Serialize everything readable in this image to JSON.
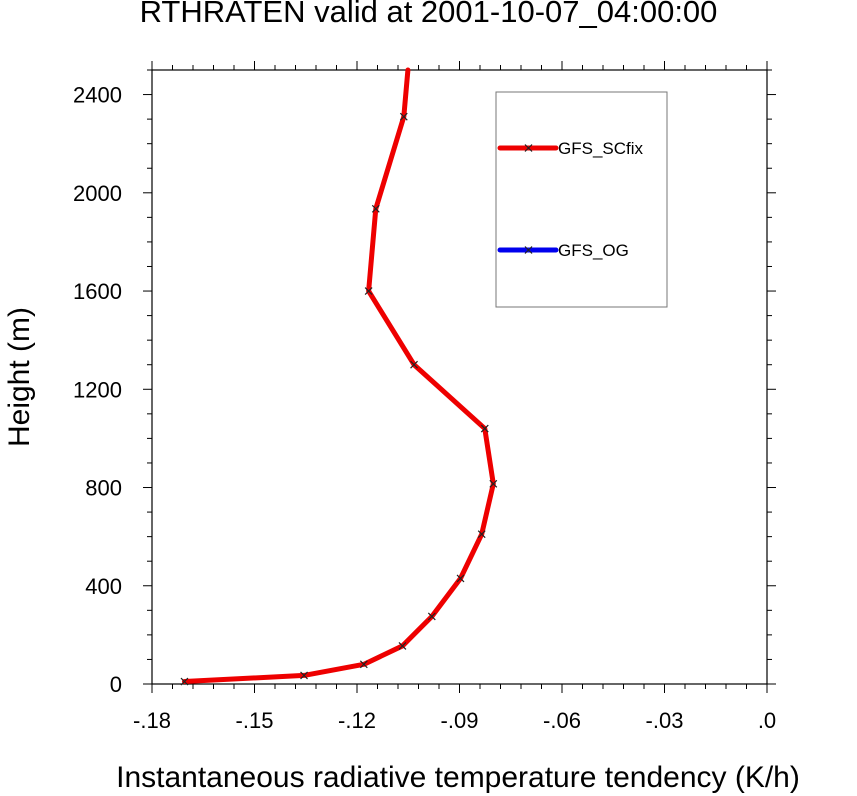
{
  "chart_data": {
    "type": "line",
    "title": "RTHRATEN valid at 2001-10-07_04:00:00",
    "xlabel": "Instantaneous radiative temperature tendency (K/h)",
    "ylabel": "Height (m)",
    "xlim": [
      -0.18,
      0.0
    ],
    "ylim": [
      0,
      2500
    ],
    "x_ticks": [
      -0.18,
      -0.15,
      -0.12,
      -0.09,
      -0.06,
      -0.03,
      0.0
    ],
    "x_tick_labels": [
      "-.18",
      "-.15",
      "-.12",
      "-.09",
      "-.06",
      "-.03",
      ".0"
    ],
    "y_ticks": [
      0,
      400,
      800,
      1200,
      1600,
      2000,
      2400
    ],
    "y_tick_labels": [
      "0",
      "400",
      "800",
      "1200",
      "1600",
      "2000",
      "2400"
    ],
    "grid": false,
    "legend_position": "top-right",
    "series": [
      {
        "name": "GFS_SCfix",
        "color": "#ee0000",
        "marker": "x",
        "x": [
          -0.1705,
          -0.1355,
          -0.118,
          -0.1067,
          -0.0981,
          -0.0897,
          -0.0835,
          -0.0801,
          -0.0826,
          -0.1033,
          -0.1166,
          -0.1145,
          -0.1063,
          -0.1051
        ],
        "y": [
          10,
          35,
          80,
          155,
          275,
          430,
          610,
          815,
          1040,
          1300,
          1600,
          1935,
          2310,
          2500
        ]
      },
      {
        "name": "GFS_OG",
        "color": "#0000ee",
        "marker": "x",
        "x": [],
        "y": []
      }
    ]
  }
}
